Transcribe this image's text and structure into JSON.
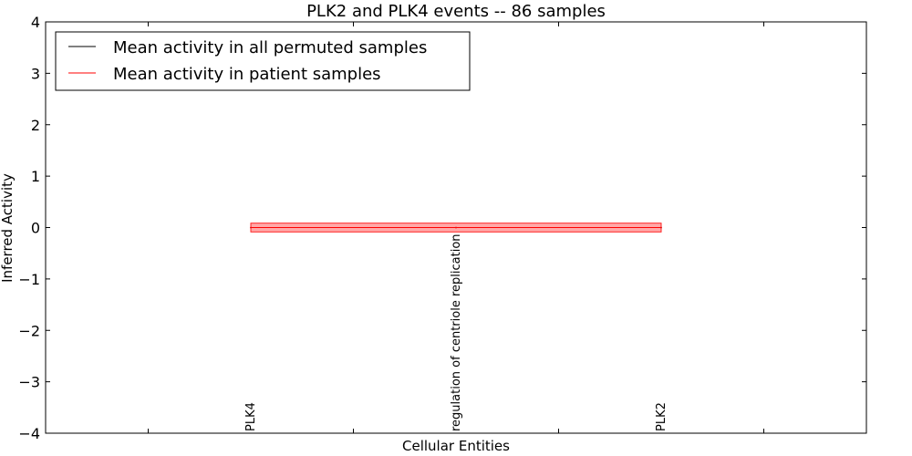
{
  "chart_data": {
    "type": "line",
    "title": "PLK2 and PLK4 events -- 86 samples",
    "xlabel": "Cellular Entities",
    "ylabel": "Inferred Activity",
    "ylim": [
      -4,
      4
    ],
    "yticks": [
      4,
      3,
      2,
      1,
      0,
      -1,
      -2,
      -3,
      -4
    ],
    "ytick_labels": [
      "4",
      "3",
      "2",
      "1",
      "0",
      "−1",
      "−2",
      "−3",
      "−4"
    ],
    "x_positions": [
      0,
      1,
      2
    ],
    "xlim": [
      -1,
      3
    ],
    "x_minor_ticks": [
      -0.5,
      0.5,
      1.5,
      2.5
    ],
    "categories": [
      "PLK4",
      "regulation of centriole replication",
      "PLK2"
    ],
    "series": [
      {
        "name": "Mean activity in all permuted samples",
        "color": "#000000",
        "values": [
          0,
          0,
          0
        ]
      },
      {
        "name": "Mean activity in patient samples",
        "color": "#ff0000",
        "values": [
          0,
          0,
          0
        ],
        "band": [
          -0.05,
          0.05
        ],
        "band_color": "#ff9999"
      }
    ],
    "legend": {
      "placement": "top-left",
      "entries": [
        "Mean activity in all permuted samples",
        "Mean activity in patient samples"
      ]
    }
  }
}
